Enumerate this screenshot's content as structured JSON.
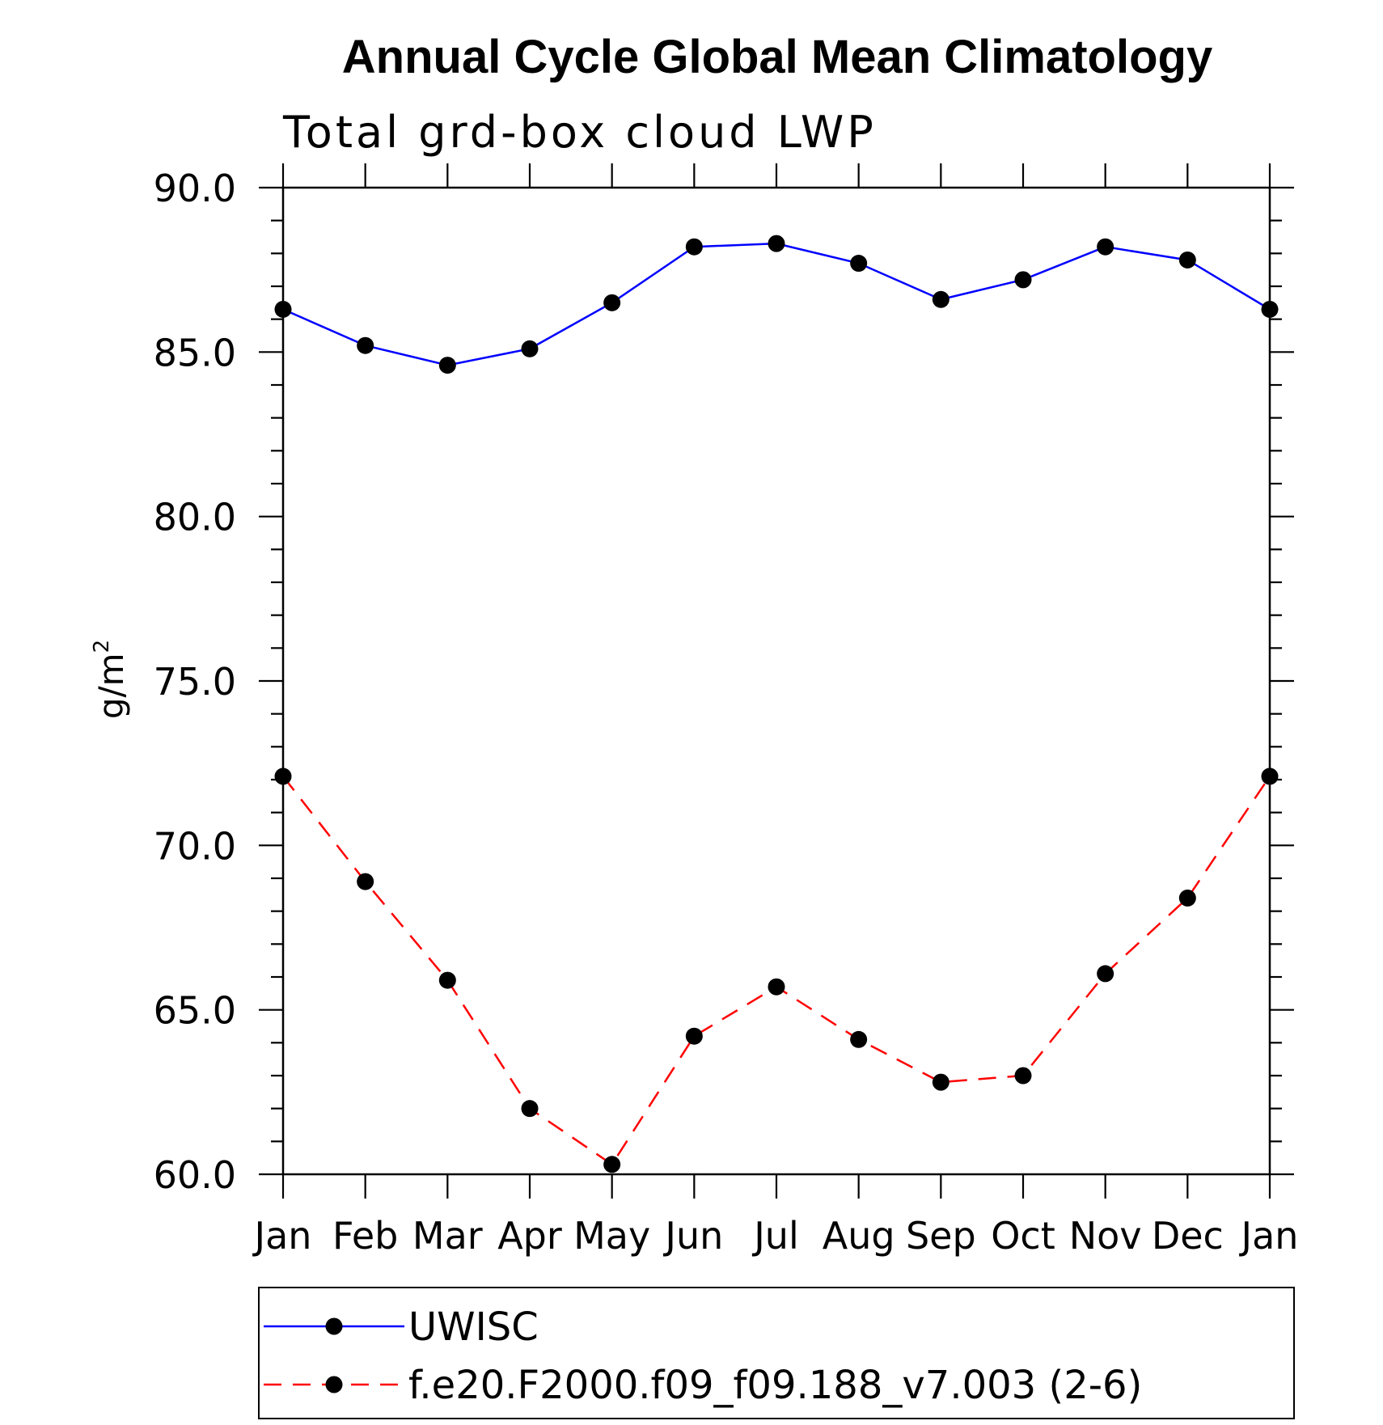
{
  "chart_data": {
    "type": "line",
    "title": "Annual Cycle Global Mean Climatology",
    "subtitle": "Total grd-box cloud LWP",
    "ylabel": "g/m",
    "ylabel_superscript": "2",
    "xlabel": "",
    "categories": [
      "Jan",
      "Feb",
      "Mar",
      "Apr",
      "May",
      "Jun",
      "Jul",
      "Aug",
      "Sep",
      "Oct",
      "Nov",
      "Dec",
      "Jan"
    ],
    "ylim": [
      60.0,
      90.0
    ],
    "yticks": [
      "60.0",
      "65.0",
      "70.0",
      "75.0",
      "80.0",
      "85.0",
      "90.0"
    ],
    "grid": false,
    "legend_position": "bottom",
    "series": [
      {
        "name": "UWISC",
        "color": "#0000ff",
        "dash": "solid",
        "marker": "filled-circle",
        "values": [
          86.3,
          85.2,
          84.6,
          85.1,
          86.5,
          88.2,
          88.3,
          87.7,
          86.6,
          87.2,
          88.2,
          87.8,
          86.3
        ]
      },
      {
        "name": "f.e20.F2000.f09_f09.188_v7.003 (2-6)",
        "color": "#ff0000",
        "dash": "dashed",
        "marker": "filled-circle",
        "values": [
          72.1,
          68.9,
          65.9,
          62.0,
          60.3,
          64.2,
          65.7,
          64.1,
          62.8,
          63.0,
          66.1,
          68.4,
          72.1
        ]
      }
    ]
  }
}
